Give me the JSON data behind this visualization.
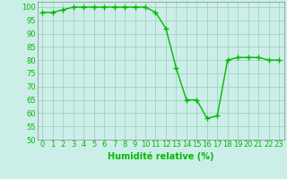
{
  "x": [
    0,
    1,
    2,
    3,
    4,
    5,
    6,
    7,
    8,
    9,
    10,
    11,
    12,
    13,
    14,
    15,
    16,
    17,
    18,
    19,
    20,
    21,
    22,
    23
  ],
  "y": [
    98,
    98,
    99,
    100,
    100,
    100,
    100,
    100,
    100,
    100,
    100,
    98,
    92,
    77,
    65,
    65,
    58,
    59,
    80,
    81,
    81,
    81,
    80,
    80
  ],
  "line_color": "#00bb00",
  "marker": "+",
  "marker_size": 4,
  "background_color": "#cceee8",
  "grid_color": "#99ccbb",
  "xlabel": "Humidité relative (%)",
  "ylim": [
    50,
    102
  ],
  "xlim": [
    -0.5,
    23.5
  ],
  "yticks": [
    50,
    55,
    60,
    65,
    70,
    75,
    80,
    85,
    90,
    95,
    100
  ],
  "xticks": [
    0,
    1,
    2,
    3,
    4,
    5,
    6,
    7,
    8,
    9,
    10,
    11,
    12,
    13,
    14,
    15,
    16,
    17,
    18,
    19,
    20,
    21,
    22,
    23
  ],
  "xtick_labels": [
    "0",
    "1",
    "2",
    "3",
    "4",
    "5",
    "6",
    "7",
    "8",
    "9",
    "10",
    "11",
    "12",
    "13",
    "14",
    "15",
    "16",
    "17",
    "18",
    "19",
    "20",
    "21",
    "22",
    "23"
  ],
  "xlabel_fontsize": 7,
  "tick_fontsize": 6,
  "line_width": 1.0,
  "marker_edge_width": 1.0
}
